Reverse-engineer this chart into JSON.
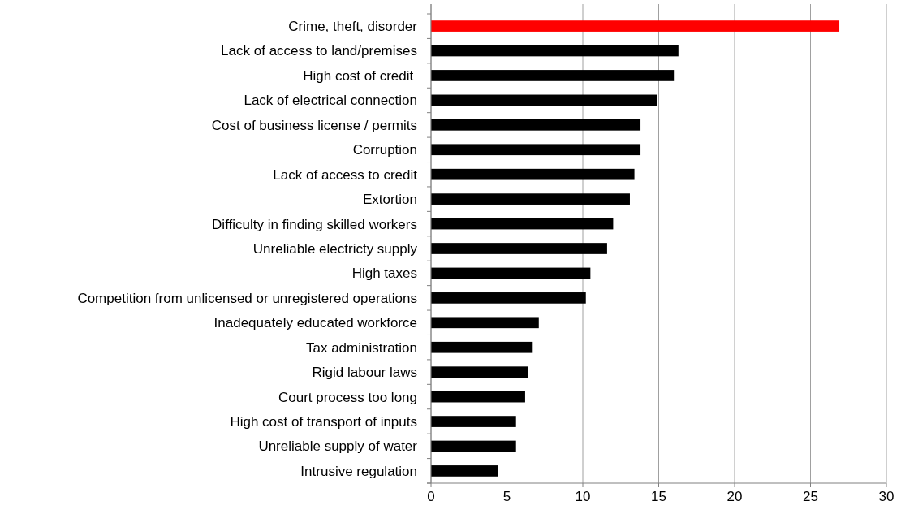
{
  "chart_data": {
    "type": "bar",
    "orientation": "horizontal",
    "categories": [
      "Crime, theft, disorder",
      "Lack of access to land/premises",
      "High cost of credit ",
      "Lack of electrical connection",
      "Cost of business license / permits",
      "Corruption",
      "Lack of access to credit",
      "Extortion",
      "Difficulty in finding skilled workers",
      "Unreliable electricty supply",
      "High taxes",
      "Competition from unlicensed or unregistered operations",
      "Inadequately educated workforce",
      "Tax administration",
      "Rigid labour laws",
      "Court process too long",
      "High cost of transport of inputs",
      "Unreliable supply of water",
      "Intrusive regulation"
    ],
    "values": [
      26.9,
      16.3,
      16.0,
      14.9,
      13.8,
      13.8,
      13.4,
      13.1,
      12.0,
      11.6,
      10.5,
      10.2,
      7.1,
      6.7,
      6.4,
      6.2,
      5.6,
      5.6,
      4.4
    ],
    "colors": [
      "#ff0000",
      "#000000",
      "#000000",
      "#000000",
      "#000000",
      "#000000",
      "#000000",
      "#000000",
      "#000000",
      "#000000",
      "#000000",
      "#000000",
      "#000000",
      "#000000",
      "#000000",
      "#000000",
      "#000000",
      "#000000",
      "#000000"
    ],
    "xlim": [
      0,
      30
    ],
    "xticks": [
      0,
      5,
      10,
      15,
      20,
      25,
      30
    ],
    "grid": "x"
  }
}
